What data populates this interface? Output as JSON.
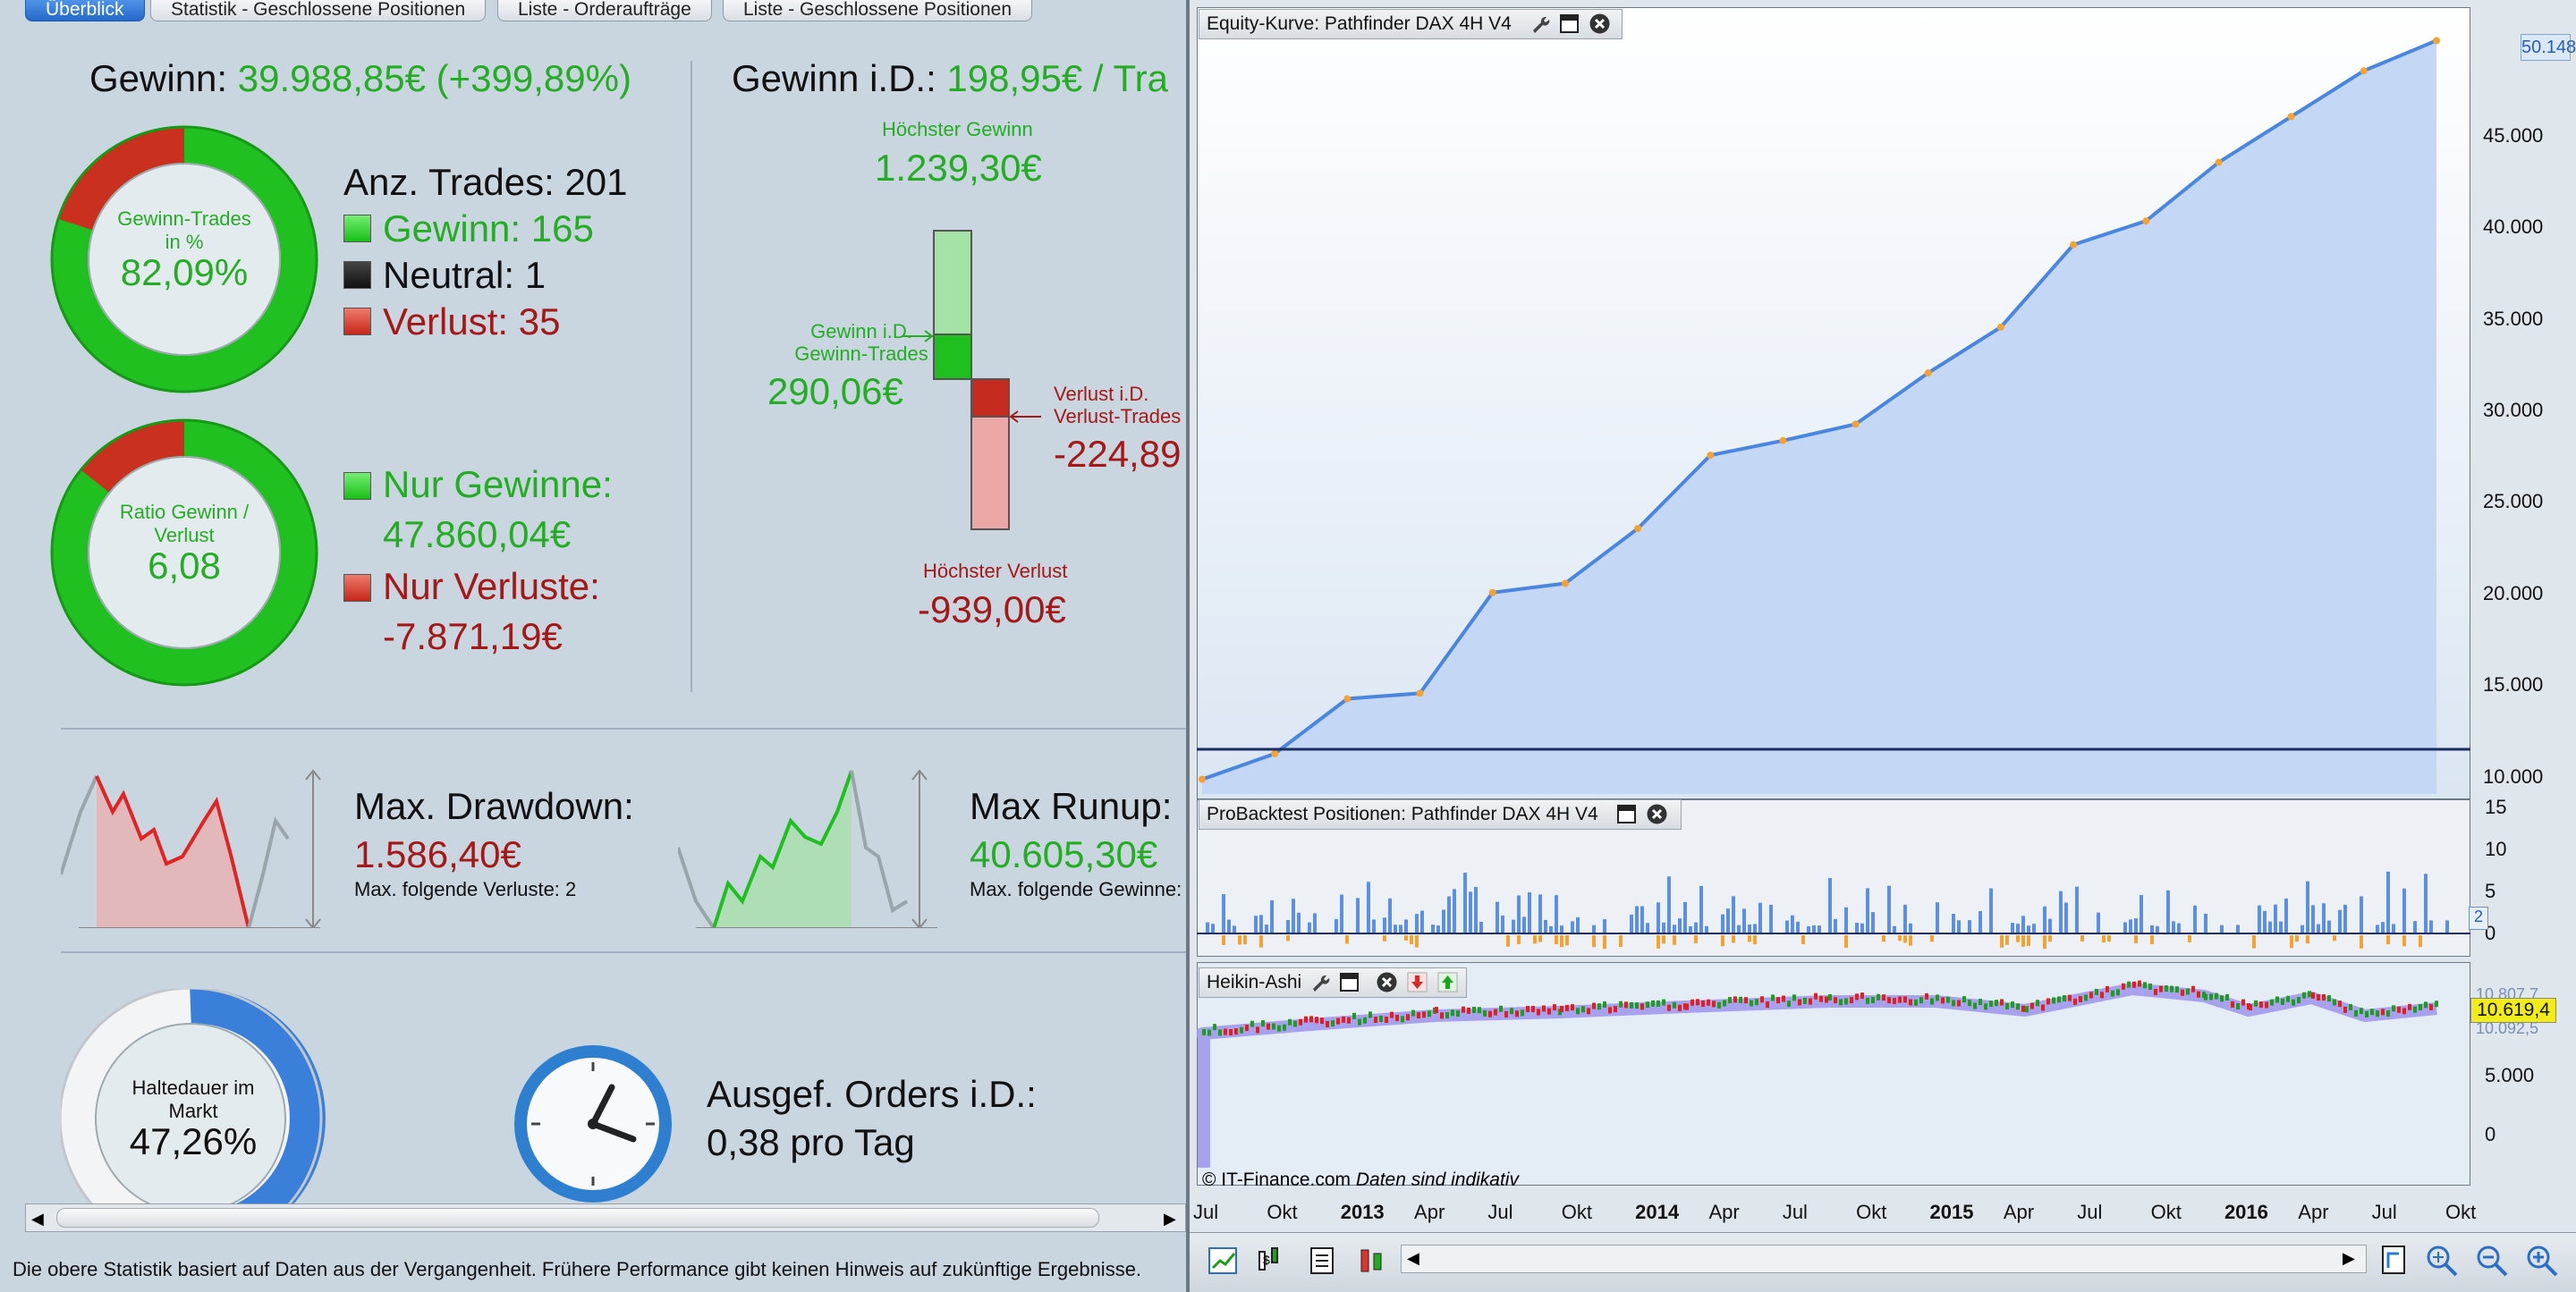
{
  "tabs": [
    {
      "label": "Überblick",
      "active": true
    },
    {
      "label": "Statistik - Geschlossene Positionen"
    },
    {
      "label": "Liste - Orderaufträge"
    },
    {
      "label": "Liste - Geschlossene Positionen"
    }
  ],
  "summary": {
    "profit_label": "Gewinn:",
    "profit_value": "39.988,85€ (+399,89%)",
    "win_ring_label1": "Gewinn-Trades",
    "win_ring_label2": "in %",
    "win_ring_value": "82,09%",
    "win_ring_fraction": 0.8209,
    "trades_label": "Anz. Trades: 201",
    "wins_label": "Gewinn: 165",
    "neutral_label": "Neutral: 1",
    "losses_label": "Verlust: 35",
    "ratio_label1": "Ratio Gewinn /",
    "ratio_label2": "Verlust",
    "ratio_value": "6,08",
    "only_gains_label": "Nur Gewinne:",
    "only_gains_value": "47.860,04€",
    "only_losses_label": "Nur Verluste:",
    "only_losses_value": "-7.871,19€",
    "avg_label": "Gewinn i.D.:",
    "avg_value": "198,95€ / Tra",
    "max_gain_label": "Höchster Gewinn",
    "max_gain_value": "1.239,30€",
    "avg_win_label1": "Gewinn i.D.",
    "avg_win_label2": "Gewinn-Trades",
    "avg_win_value": "290,06€",
    "avg_loss_label1": "Verlust i.D.",
    "avg_loss_label2": "Verlust-Trades",
    "avg_loss_value": "-224,89",
    "max_loss_label": "Höchster Verlust",
    "max_loss_value": "-939,00€",
    "drawdown_label": "Max. Drawdown:",
    "drawdown_value": "1.586,40€",
    "drawdown_sub": "Max. folgende Verluste: 2",
    "runup_label": "Max Runup:",
    "runup_value": "40.605,30€",
    "runup_sub": "Max. folgende Gewinne:",
    "hold_label1": "Haltedauer im",
    "hold_label2": "Markt",
    "hold_value": "47,26%",
    "hold_fraction": 0.4726,
    "orders_label": "Ausgef. Orders i.D.:",
    "orders_value": "0,38 pro Tag",
    "disclaimer": "Die obere Statistik basiert auf Daten aus der Vergangenheit. Frühere Performance gibt keinen Hinweis auf zukünftige Ergebnisse."
  },
  "chart_panel": {
    "equity_title": "Equity-Kurve: Pathfinder DAX 4H V4",
    "equity_current": "50.148",
    "equity_axis": [
      "45.000",
      "40.000",
      "35.000",
      "30.000",
      "25.000",
      "20.000",
      "15.000",
      "10.000"
    ],
    "positions_title": "ProBacktest Positionen: Pathfinder DAX 4H V4",
    "positions_axis": [
      "15",
      "10",
      "5",
      "0"
    ],
    "positions_current": "2",
    "ha_title": "Heikin-Ashi",
    "ha_axis": [
      "5.000",
      "0"
    ],
    "ha_current": "10.619,4",
    "ha_upper": "10.807,7",
    "ha_lower": "10.092,5",
    "copyright": "© IT-Finance.com",
    "indicative": "Daten sind indikativ",
    "x_labels": [
      "Jul",
      "Okt",
      "2013",
      "Apr",
      "Jul",
      "Okt",
      "2014",
      "Apr",
      "Jul",
      "Okt",
      "2015",
      "Apr",
      "Jul",
      "Okt",
      "2016",
      "Apr",
      "Jul",
      "Okt"
    ],
    "colors": {
      "equity_line": "#4a86df",
      "equity_fill": "#c4d8f6",
      "gain": "#24ad24",
      "loss": "#a51818",
      "orange": "#f5a230"
    }
  },
  "chart_data": {
    "type": "line",
    "title": "Equity-Kurve: Pathfinder DAX 4H V4",
    "x": [
      "2012-07",
      "2012-10",
      "2013-01",
      "2013-04",
      "2013-07",
      "2013-10",
      "2014-01",
      "2014-04",
      "2014-07",
      "2014-10",
      "2015-01",
      "2015-04",
      "2015-07",
      "2015-10",
      "2016-01",
      "2016-04",
      "2016-07",
      "2016-09"
    ],
    "series": [
      {
        "values": [
          9800,
          11200,
          14200,
          14500,
          20000,
          20500,
          23500,
          27500,
          28300,
          29200,
          32000,
          34500,
          39000,
          40300,
          43500,
          46000,
          48500,
          50148
        ]
      }
    ],
    "ylim": [
      9000,
      51000
    ]
  }
}
